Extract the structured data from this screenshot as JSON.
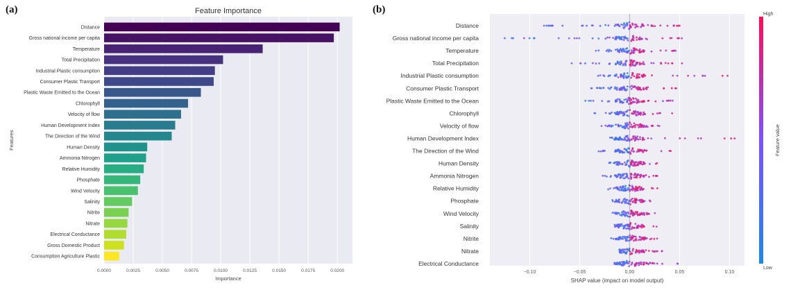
{
  "panel_labels": {
    "a": "(a)",
    "b": "(b)"
  },
  "chart_data": [
    {
      "type": "bar",
      "orientation": "horizontal",
      "title": "Feature Importance",
      "xlabel": "Importance",
      "ylabel": "Features",
      "xlim": [
        0,
        0.0213
      ],
      "xticks": [
        0,
        0.0025,
        0.005,
        0.0075,
        0.01,
        0.0125,
        0.015,
        0.0175,
        0.02
      ],
      "xtick_labels": [
        "0.0000",
        "0.0025",
        "0.0050",
        "0.0075",
        "0.0100",
        "0.0125",
        "0.0150",
        "0.0175",
        "0.0200"
      ],
      "grid": true,
      "colormap": "viridis",
      "categories": [
        "Distance",
        "Gross national income per capita",
        "Temperature",
        "Total Precipitation",
        "Industrial Plastic consumption",
        "Consumer Plastic Transport",
        "Plastic Waste Emitted to the Ocean",
        "Chlorophyll",
        "Velocity of flow",
        "Human Development Index",
        "The Direction of the Wind",
        "Human Density",
        "Ammonia Nitrogen",
        "Relative Humidity",
        "Phosphate",
        "Wind Velocity",
        "Salinity",
        "Nitrite",
        "Nitrate",
        "Electrical Conductance",
        "Gross Domestic Product",
        "Consumption Agriculture Plastic"
      ],
      "values": [
        0.0202,
        0.0197,
        0.0136,
        0.0102,
        0.0095,
        0.0094,
        0.0083,
        0.0072,
        0.0066,
        0.0061,
        0.0058,
        0.0037,
        0.0036,
        0.0034,
        0.0031,
        0.0029,
        0.0024,
        0.0021,
        0.002,
        0.0019,
        0.0017,
        0.0013
      ],
      "colors": [
        "#440154",
        "#471365",
        "#482374",
        "#46327e",
        "#433e85",
        "#3e4989",
        "#38588c",
        "#33638d",
        "#2d708e",
        "#287c8e",
        "#24878e",
        "#1f938b",
        "#1fa088",
        "#26ad81",
        "#35b779",
        "#4ac16d",
        "#63cb5f",
        "#7ad151",
        "#95d840",
        "#b0dd2f",
        "#cde11d",
        "#fde725"
      ]
    },
    {
      "type": "scatter",
      "subtype": "shap_beeswarm",
      "xlabel": "SHAP value (impact on model output)",
      "xlim": [
        -0.14,
        0.115
      ],
      "xticks": [
        -0.1,
        -0.05,
        0.0,
        0.05,
        0.1
      ],
      "xtick_labels": [
        "−0.10",
        "−0.05",
        "0.00",
        "0.05",
        "0.10"
      ],
      "colorbar": {
        "label": "Feature value",
        "high": "High",
        "low": "Low",
        "low_color": "#1e88e5",
        "high_color": "#ff0d57"
      },
      "features": [
        {
          "name": "Distance",
          "min": -0.088,
          "max": 0.055
        },
        {
          "name": "Gross national income per capita",
          "min": -0.13,
          "max": 0.06
        },
        {
          "name": "Temperature",
          "min": -0.036,
          "max": 0.065
        },
        {
          "name": "Total Precipitation",
          "min": -0.06,
          "max": 0.058
        },
        {
          "name": "Industrial Plastic consumption",
          "min": -0.032,
          "max": 0.11
        },
        {
          "name": "Consumer Plastic Transport",
          "min": -0.042,
          "max": 0.05
        },
        {
          "name": "Plastic Waste Emitted to the Ocean",
          "min": -0.048,
          "max": 0.048
        },
        {
          "name": "Chlorophyll",
          "min": -0.038,
          "max": 0.064
        },
        {
          "name": "Velocity of flow",
          "min": -0.03,
          "max": 0.03
        },
        {
          "name": "Human Development Index",
          "min": -0.02,
          "max": 0.106
        },
        {
          "name": "The Direction of the Wind",
          "min": -0.032,
          "max": 0.042
        },
        {
          "name": "Human Density",
          "min": -0.022,
          "max": 0.03
        },
        {
          "name": "Ammonia Nitrogen",
          "min": -0.028,
          "max": 0.028
        },
        {
          "name": "Relative Humidity",
          "min": -0.026,
          "max": 0.03
        },
        {
          "name": "Phosphate",
          "min": -0.02,
          "max": 0.026
        },
        {
          "name": "Wind Velocity",
          "min": -0.018,
          "max": 0.026
        },
        {
          "name": "Salinity",
          "min": -0.016,
          "max": 0.03
        },
        {
          "name": "Nitrite",
          "min": -0.02,
          "max": 0.028
        },
        {
          "name": "Nitrate",
          "min": -0.01,
          "max": 0.036
        },
        {
          "name": "Electrical Conductance",
          "min": -0.016,
          "max": 0.05
        }
      ]
    }
  ]
}
